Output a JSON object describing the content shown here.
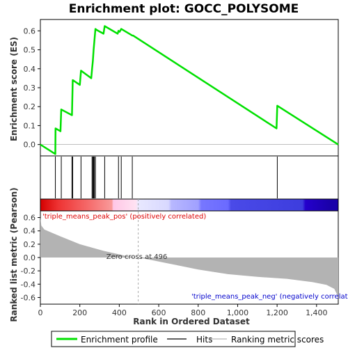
{
  "colors": {
    "enrichment_line": "#00e000",
    "hits": "#000000",
    "metric_fill": "#b3b3b3",
    "pos_label": "#dd0000",
    "neg_label": "#0000cc",
    "zero_cross_line": "#aaaaaa"
  },
  "chart_data": {
    "type": "line",
    "title": "Enrichment plot: GOCC_POLYSOME",
    "xlabel": "Rank in Ordered Dataset",
    "xlim": [
      0,
      1510
    ],
    "xticks": [
      "0",
      "200",
      "400",
      "600",
      "800",
      "1,000",
      "1,200",
      "1,400"
    ],
    "xtick_values": [
      0,
      200,
      400,
      600,
      800,
      1000,
      1200,
      1400
    ],
    "es_panel": {
      "ylabel": "Enrichment score (ES)",
      "ylim": [
        -0.06,
        0.66
      ],
      "yticks": [
        "0.0",
        "0.1",
        "0.2",
        "0.3",
        "0.4",
        "0.5",
        "0.6"
      ],
      "ytick_values": [
        0.0,
        0.1,
        0.2,
        0.3,
        0.4,
        0.5,
        0.6
      ],
      "series": [
        {
          "name": "Enrichment profile",
          "x": [
            0,
            76,
            77,
            102,
            106,
            160,
            164,
            200,
            206,
            258,
            262,
            266,
            270,
            274,
            279,
            285,
            320,
            326,
            392,
            396,
            402,
            410,
            466,
            470,
            1197,
            1201,
            1510
          ],
          "y": [
            0.0,
            -0.05,
            0.085,
            0.07,
            0.185,
            0.155,
            0.34,
            0.315,
            0.39,
            0.35,
            0.4,
            0.44,
            0.5,
            0.55,
            0.61,
            0.605,
            0.585,
            0.625,
            0.585,
            0.6,
            0.595,
            0.61,
            0.575,
            0.575,
            0.085,
            0.205,
            0.0
          ]
        }
      ]
    },
    "hits": [
      76,
      106,
      160,
      164,
      206,
      262,
      266,
      270,
      274,
      279,
      326,
      396,
      410,
      466,
      1201
    ],
    "metric_panel": {
      "ylabel": "Ranked list metric (Pearson)",
      "ylim": [
        -0.7,
        0.7
      ],
      "yticks": [
        "0.6",
        "0.4",
        "0.2",
        "0.0",
        "-0.2",
        "-0.4",
        "-0.6"
      ],
      "ytick_values": [
        0.6,
        0.4,
        0.2,
        0.0,
        -0.2,
        -0.4,
        -0.6
      ],
      "profile_x": [
        0,
        5,
        20,
        60,
        100,
        150,
        200,
        260,
        320,
        380,
        440,
        496,
        550,
        650,
        800,
        950,
        1100,
        1250,
        1380,
        1450,
        1490,
        1505,
        1510
      ],
      "profile_y": [
        0.6,
        0.48,
        0.42,
        0.37,
        0.32,
        0.26,
        0.2,
        0.15,
        0.1,
        0.06,
        0.02,
        0.0,
        -0.03,
        -0.09,
        -0.18,
        -0.25,
        -0.29,
        -0.32,
        -0.37,
        -0.41,
        -0.47,
        -0.56,
        -0.62
      ],
      "zero_cross_rank": 496,
      "zero_cross_label": "Zero cross at 496",
      "pos_label": "'triple_means_peak_pos' (positively correlated)",
      "neg_label": "'triple_means_peak_neg' (negatively correlated)"
    },
    "legend": {
      "placement": "bottom",
      "items": [
        {
          "label": "Enrichment profile",
          "style": "line",
          "color": "#00e000"
        },
        {
          "label": "Hits",
          "style": "line",
          "color": "#000000"
        },
        {
          "label": "Ranking metric scores",
          "style": "line",
          "color": "#b3b3b3"
        }
      ]
    }
  }
}
